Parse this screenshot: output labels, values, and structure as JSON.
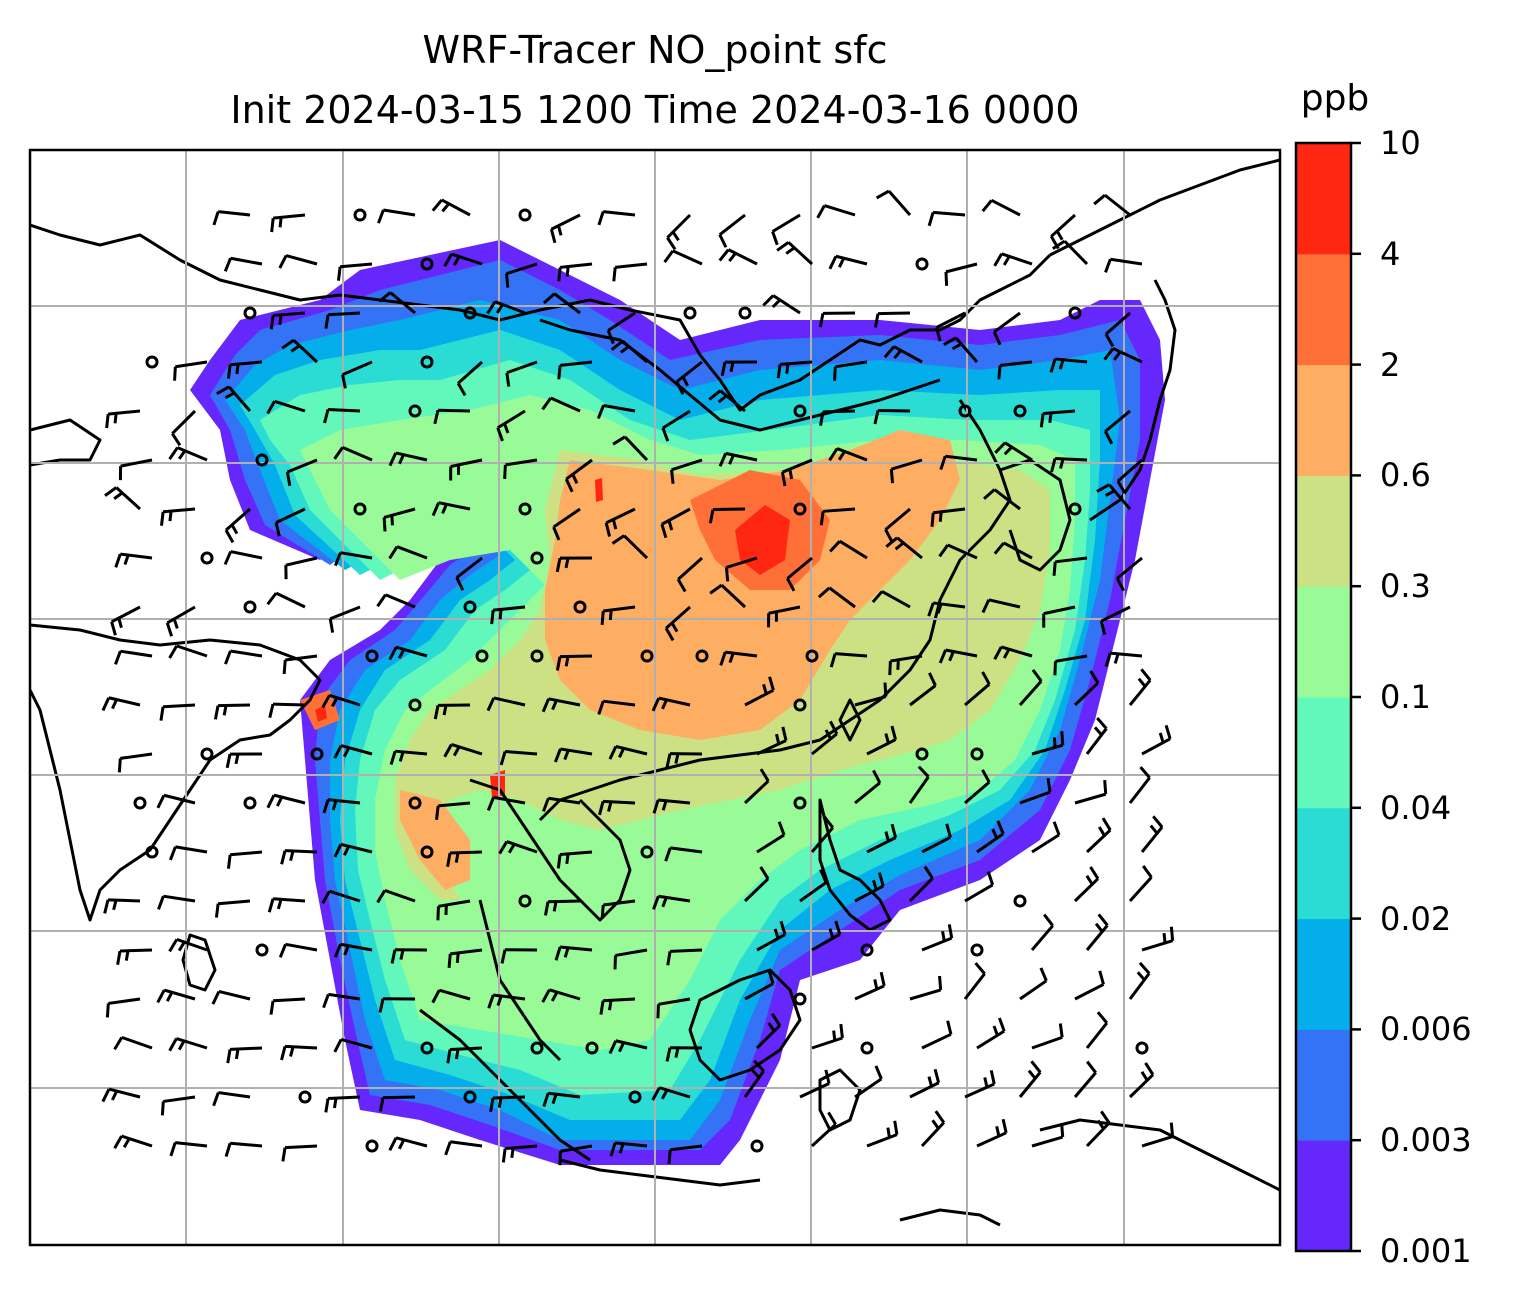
{
  "title": {
    "line1": "WRF-Tracer NO_point sfc",
    "line2": "Init 2024-03-15 1200 Time 2024-03-16 0000"
  },
  "colorbar": {
    "unit": "ppb",
    "levels": [
      "0.001",
      "0.003",
      "0.006",
      "0.02",
      "0.04",
      "0.1",
      "0.3",
      "0.6",
      "2",
      "4",
      "10"
    ],
    "colors": [
      "#6527fb",
      "#3473f5",
      "#04aeeb",
      "#2bdcd5",
      "#62f8bc",
      "#98fb97",
      "#cce183",
      "#feae63",
      "#ff7038",
      "#ff2712"
    ]
  },
  "map": {
    "gridlines": true,
    "field": "NO_point tracer concentration",
    "overlays": [
      "coastlines",
      "country borders",
      "wind barbs"
    ]
  }
}
